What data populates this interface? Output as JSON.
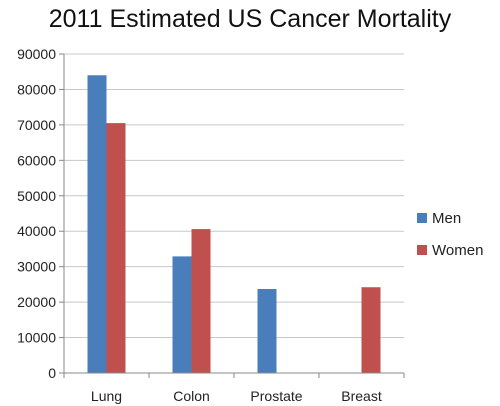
{
  "chart_data": {
    "type": "bar",
    "title": "2011 Estimated US Cancer Mortality",
    "xlabel": "",
    "ylabel": "",
    "categories": [
      "Lung",
      "Colon",
      "Prostate",
      "Breast"
    ],
    "series": [
      {
        "name": "Men",
        "color": "#4a7ebb",
        "values": [
          84000,
          32900,
          23700,
          null
        ]
      },
      {
        "name": "Women",
        "color": "#c0504d",
        "values": [
          70500,
          40600,
          null,
          24200
        ]
      }
    ],
    "ylim": [
      0,
      90000
    ],
    "yticks": [
      0,
      10000,
      20000,
      30000,
      40000,
      50000,
      60000,
      70000,
      80000,
      90000
    ],
    "grid": true,
    "legend": "right"
  }
}
